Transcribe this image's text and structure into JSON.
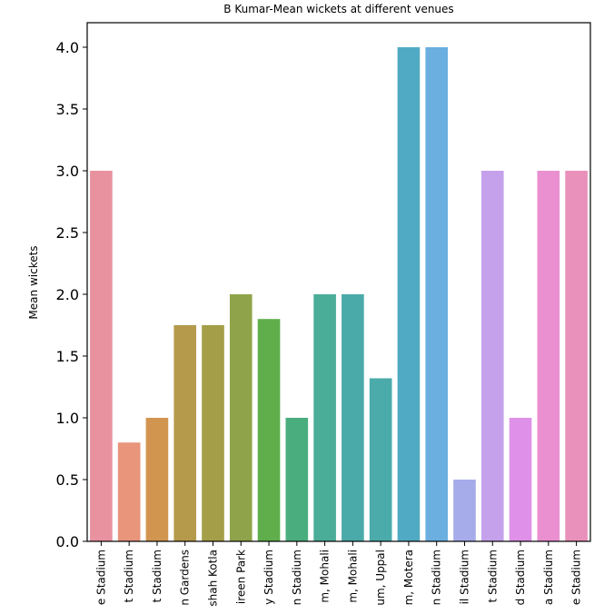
{
  "chart_data": {
    "type": "bar",
    "title": "B Kumar-Mean wickets at different venues",
    "xlabel": "",
    "ylabel": "Mean wickets",
    "ylim": [
      0,
      4.2
    ],
    "yticks": [
      0.0,
      0.5,
      1.0,
      1.5,
      2.0,
      2.5,
      3.0,
      3.5,
      4.0
    ],
    "ytick_labels": [
      "0.0",
      "0.5",
      "1.0",
      "1.5",
      "2.0",
      "2.5",
      "3.0",
      "3.5",
      "4.0"
    ],
    "grid": false,
    "legend": "none",
    "categories": [
      "e Stadium",
      "t Stadium",
      "t Stadium",
      "n Gardens",
      "shah Kotla",
      "ireen Park",
      "y Stadium",
      "n Stadium",
      "m, Mohali",
      "m, Mohali",
      "um, Uppal",
      "m, Motera",
      "n Stadium",
      "il Stadium",
      "t Stadium",
      "d Stadium",
      "a Stadium",
      "e Stadium"
    ],
    "values": [
      3.0,
      0.8,
      1.0,
      1.75,
      1.75,
      2.0,
      1.8,
      1.0,
      2.0,
      2.0,
      1.32,
      4.0,
      4.0,
      0.5,
      3.0,
      1.0,
      3.0,
      3.0
    ],
    "colors": [
      "#e8919f",
      "#e8957b",
      "#d29550",
      "#b59a4c",
      "#a49e48",
      "#8fa44a",
      "#5fae4b",
      "#4aad7d",
      "#4aad98",
      "#4aaaa9",
      "#4aabaa",
      "#51aac4",
      "#6aafe0",
      "#a6acea",
      "#c5a1ec",
      "#df90e8",
      "#ea8fd0",
      "#e991bb"
    ]
  }
}
